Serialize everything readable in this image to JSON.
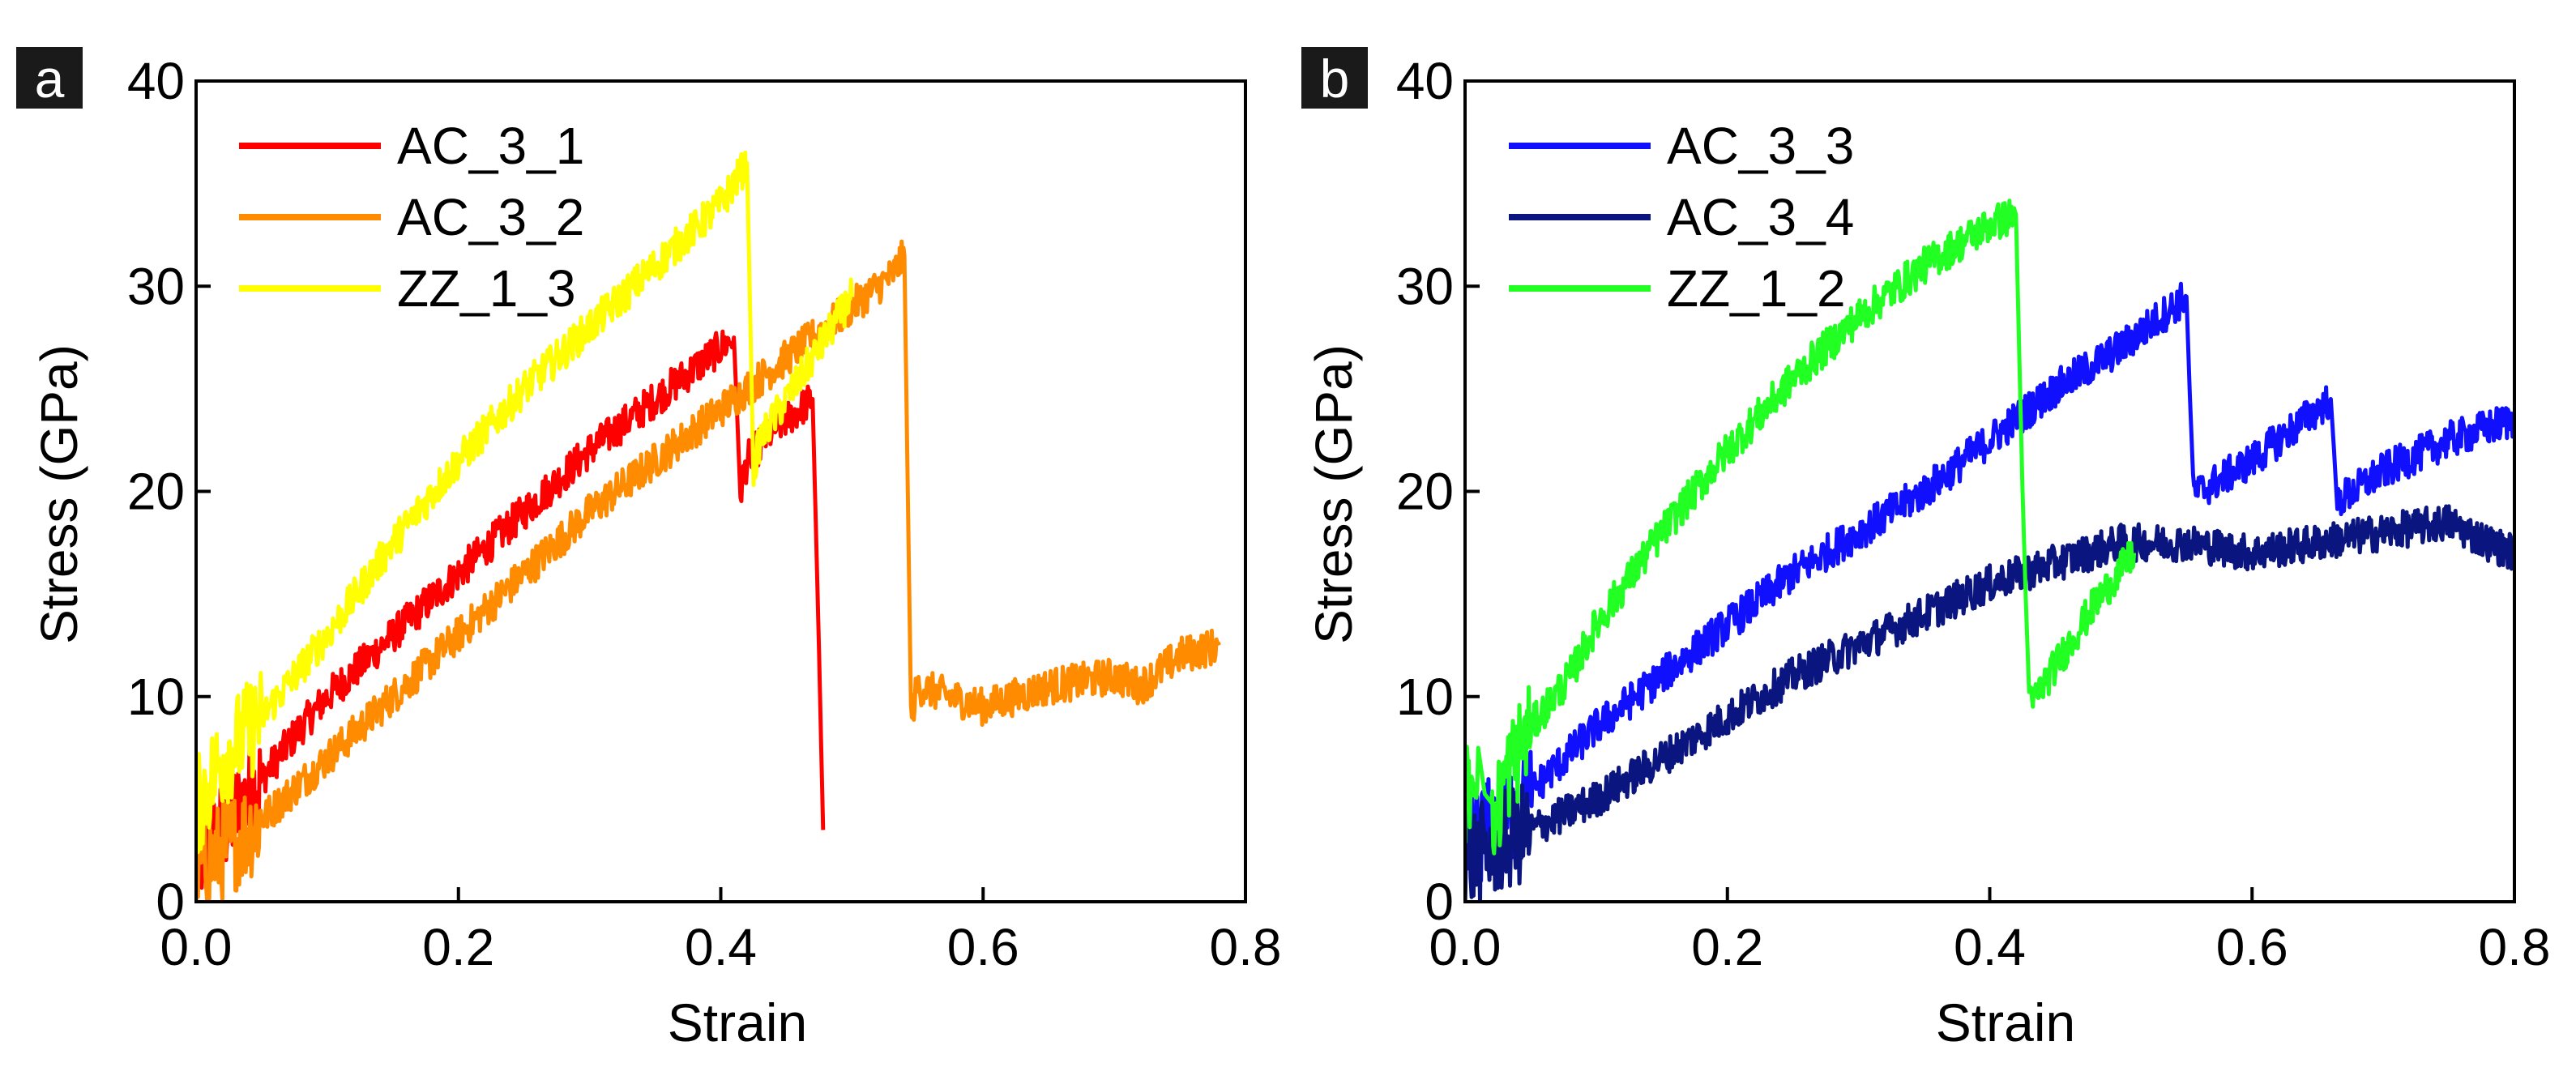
{
  "chart_data": [
    {
      "panel_label": "a",
      "type": "line",
      "xlabel": "Strain",
      "ylabel": "Stress (GPa)",
      "xlim": [
        0.0,
        0.8
      ],
      "ylim": [
        0,
        40
      ],
      "xticks": [
        0.0,
        0.2,
        0.4,
        0.6,
        0.8
      ],
      "xtick_labels": [
        "0.0",
        "0.2",
        "0.4",
        "0.6",
        "0.8"
      ],
      "yticks": [
        0,
        10,
        20,
        30,
        40
      ],
      "ytick_labels": [
        "0",
        "10",
        "20",
        "30",
        "40"
      ],
      "legend_position": "top-left",
      "series": [
        {
          "name": "AC_3_1",
          "color": "#ff0000",
          "x": [
            0.0,
            0.02,
            0.05,
            0.08,
            0.1,
            0.15,
            0.2,
            0.25,
            0.3,
            0.35,
            0.4,
            0.41,
            0.415,
            0.42,
            0.44,
            0.46,
            0.47,
            0.475,
            0.478
          ],
          "y": [
            2.0,
            3.5,
            6.0,
            8.5,
            10.0,
            13.0,
            16.0,
            19.0,
            22.0,
            24.5,
            27.0,
            27.5,
            20.0,
            21.5,
            23.0,
            24.0,
            24.5,
            12.0,
            3.5
          ]
        },
        {
          "name": "AC_3_2",
          "color": "#ff8c00",
          "x": [
            0.0,
            0.05,
            0.1,
            0.15,
            0.2,
            0.25,
            0.3,
            0.35,
            0.4,
            0.45,
            0.5,
            0.53,
            0.54,
            0.545,
            0.55,
            0.6,
            0.65,
            0.7,
            0.72,
            0.75,
            0.78
          ],
          "y": [
            1.5,
            4.0,
            7.0,
            10.0,
            13.0,
            16.0,
            19.0,
            21.5,
            24.0,
            26.5,
            29.0,
            30.5,
            31.5,
            9.0,
            10.5,
            9.5,
            10.5,
            11.0,
            10.5,
            12.0,
            12.5
          ]
        },
        {
          "name": "ZZ_1_3",
          "color": "#ffff00",
          "x": [
            0.0,
            0.02,
            0.05,
            0.1,
            0.15,
            0.2,
            0.25,
            0.3,
            0.35,
            0.4,
            0.42,
            0.425,
            0.43,
            0.45,
            0.47,
            0.5
          ],
          "y": [
            4.5,
            7.0,
            9.0,
            13.0,
            17.5,
            21.5,
            25.0,
            28.0,
            31.0,
            34.0,
            36.0,
            21.0,
            22.5,
            24.5,
            26.5,
            29.5
          ]
        }
      ]
    },
    {
      "panel_label": "b",
      "type": "line",
      "xlabel": "Strain",
      "ylabel": "Stress (GPa)",
      "xlim": [
        0.0,
        0.8
      ],
      "ylim": [
        0,
        40
      ],
      "xticks": [
        0.0,
        0.2,
        0.4,
        0.6,
        0.8
      ],
      "xtick_labels": [
        "0.0",
        "0.2",
        "0.4",
        "0.6",
        "0.8"
      ],
      "yticks": [
        0,
        10,
        20,
        30,
        40
      ],
      "ytick_labels": [
        "0",
        "10",
        "20",
        "30",
        "40"
      ],
      "legend_position": "top-left",
      "series": [
        {
          "name": "AC_3_3",
          "color": "#1010ff",
          "x": [
            0.0,
            0.03,
            0.06,
            0.1,
            0.15,
            0.2,
            0.25,
            0.3,
            0.35,
            0.4,
            0.45,
            0.5,
            0.55,
            0.555,
            0.56,
            0.6,
            0.64,
            0.66,
            0.665,
            0.7,
            0.75,
            0.8
          ],
          "y": [
            3.0,
            4.0,
            6.0,
            8.5,
            11.0,
            13.5,
            16.0,
            18.0,
            20.0,
            22.5,
            25.0,
            27.0,
            29.5,
            20.0,
            20.0,
            21.5,
            23.5,
            24.5,
            19.5,
            21.0,
            22.5,
            23.5
          ]
        },
        {
          "name": "AC_3_4",
          "color": "#0a1580",
          "x": [
            0.0,
            0.05,
            0.1,
            0.15,
            0.2,
            0.25,
            0.3,
            0.35,
            0.4,
            0.45,
            0.5,
            0.55,
            0.6,
            0.65,
            0.7,
            0.75,
            0.78,
            0.8
          ],
          "y": [
            2.0,
            3.5,
            5.0,
            7.0,
            9.0,
            11.0,
            12.5,
            14.0,
            15.5,
            16.5,
            17.5,
            17.5,
            17.0,
            17.5,
            18.0,
            18.5,
            17.5,
            17.0
          ]
        },
        {
          "name": "ZZ_1_2",
          "color": "#22ff22",
          "x": [
            0.0,
            0.01,
            0.02,
            0.03,
            0.05,
            0.08,
            0.1,
            0.15,
            0.2,
            0.25,
            0.3,
            0.35,
            0.4,
            0.42,
            0.425,
            0.43,
            0.45,
            0.48,
            0.51
          ],
          "y": [
            5.0,
            7.5,
            3.0,
            6.0,
            8.5,
            11.0,
            13.5,
            18.0,
            22.0,
            25.5,
            28.5,
            31.0,
            33.0,
            33.5,
            20.0,
            9.5,
            11.5,
            14.5,
            17.0
          ]
        }
      ]
    }
  ]
}
